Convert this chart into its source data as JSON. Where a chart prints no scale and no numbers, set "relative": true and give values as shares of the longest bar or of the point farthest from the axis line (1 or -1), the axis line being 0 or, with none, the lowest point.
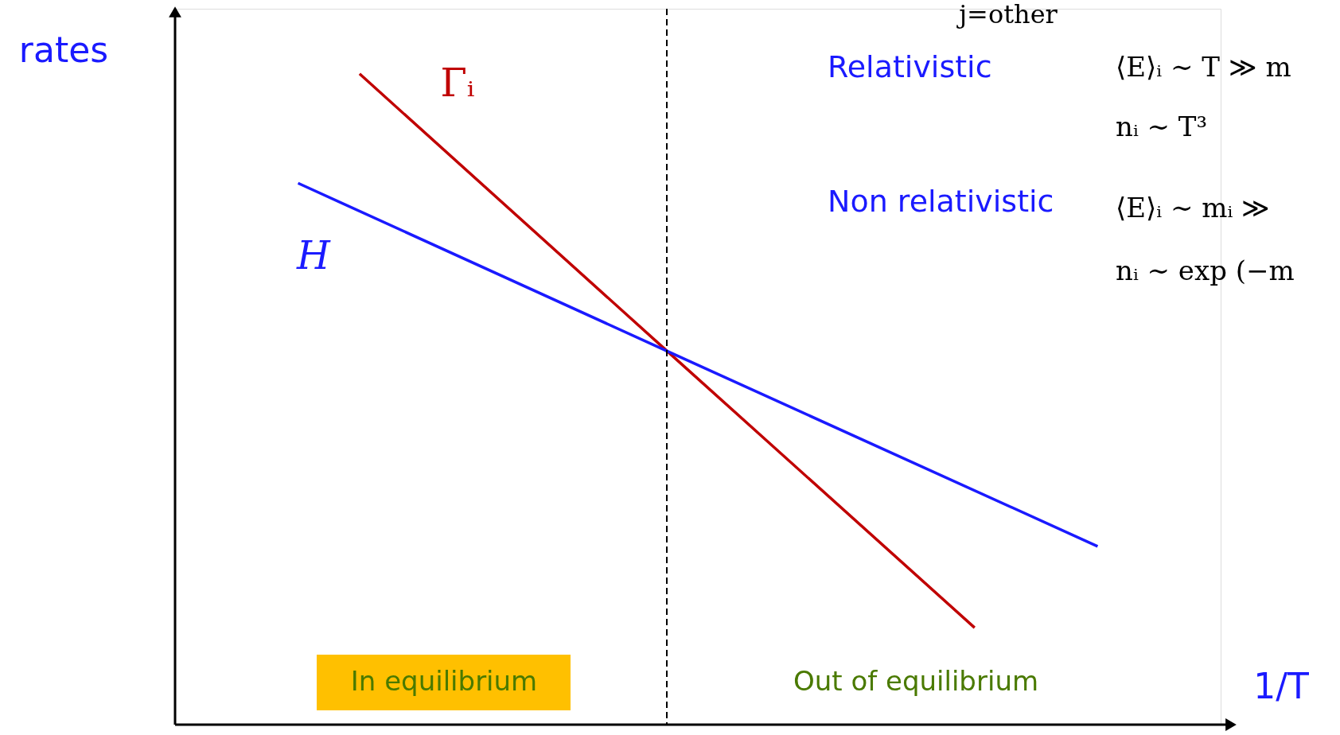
{
  "chart_data": {
    "type": "line",
    "relative": true,
    "xlabel": "1/T",
    "ylabel": "rates",
    "categories": [
      null,
      null,
      null,
      null,
      null,
      null,
      null,
      null,
      null,
      null,
      null,
      null,
      null,
      null,
      null,
      null,
      null,
      null
    ],
    "series": [
      {
        "name": "Γᵢ",
        "color": "#c00000",
        "values": [
          null,
          null,
          null,
          1,
          null,
          null,
          null,
          null,
          0.574,
          null,
          null,
          null,
          null,
          0.149,
          null,
          null,
          null,
          null
        ]
      },
      {
        "name": "H",
        "color": "#1a1aff",
        "values": [
          null,
          null,
          0.832,
          null,
          null,
          null,
          null,
          null,
          0.574,
          null,
          null,
          null,
          null,
          null,
          null,
          0.274,
          null,
          null
        ]
      }
    ],
    "annotations": [
      "j=other",
      "Relativistic",
      "⟨E⟩ᵢ ∼ T ≫ m",
      "nᵢ ∼ T³",
      "Non relativistic",
      "⟨E⟩ᵢ ∼ mᵢ ≫",
      "nᵢ ∼ exp (−m",
      "In equilibrium",
      "Out of equilibrium"
    ],
    "grid": false,
    "marker": "none",
    "line_style": "solid"
  }
}
